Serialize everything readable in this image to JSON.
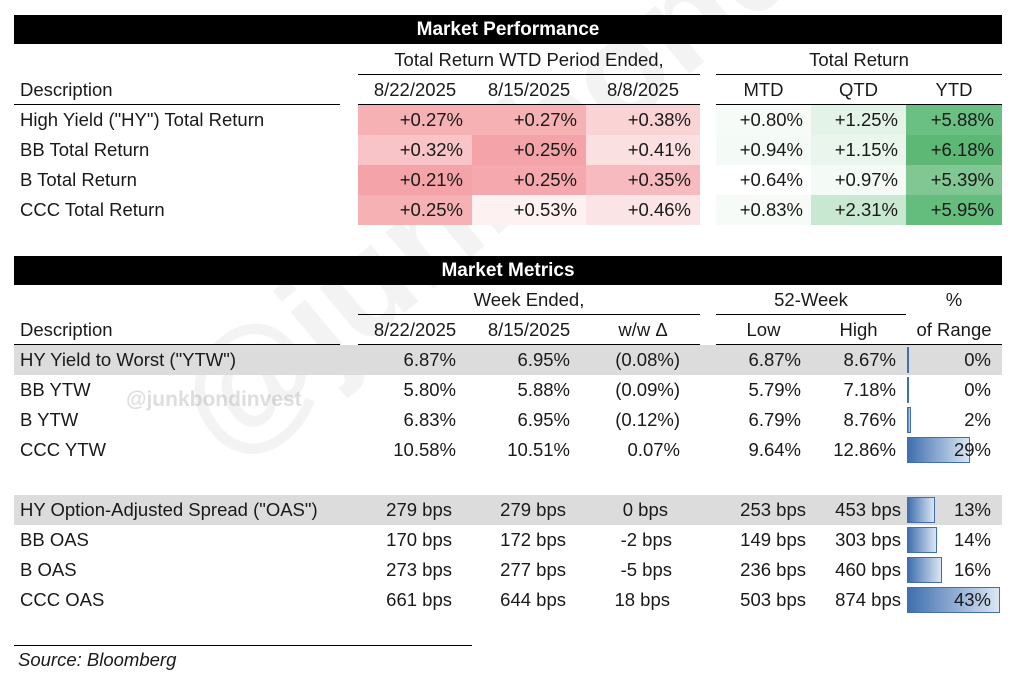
{
  "colors": {
    "red_strong": "#f4a3a8",
    "red_mid": "#f7bfc2",
    "red_light": "#fadadc",
    "red_faint": "#fdf0f0",
    "green_strong": "#5cb874",
    "green_mid": "#73c288",
    "green_light": "#c9e8d1",
    "green_pale": "#e9f5ec",
    "green_faint": "#f4faf5",
    "bar_blue": "#3f6faf",
    "gray_row": "#dcdcdc"
  },
  "performance": {
    "title": "Market Performance",
    "group_wtd": "Total Return WTD Period Ended,",
    "group_total": "Total Return",
    "description_header": "Description",
    "columns": [
      "8/22/2025",
      "8/15/2025",
      "8/8/2025",
      "MTD",
      "QTD",
      "YTD"
    ],
    "rows": [
      {
        "label": "High Yield (\"HY\") Total Return",
        "values": [
          "+0.27%",
          "+0.27%",
          "+0.38%",
          "+0.80%",
          "+1.25%",
          "+5.88%"
        ]
      },
      {
        "label": "BB Total Return",
        "values": [
          "+0.32%",
          "+0.25%",
          "+0.41%",
          "+0.94%",
          "+1.15%",
          "+6.18%"
        ]
      },
      {
        "label": "B Total Return",
        "values": [
          "+0.21%",
          "+0.25%",
          "+0.35%",
          "+0.64%",
          "+0.97%",
          "+5.39%"
        ]
      },
      {
        "label": "CCC Total Return",
        "values": [
          "+0.25%",
          "+0.53%",
          "+0.46%",
          "+0.83%",
          "+2.31%",
          "+5.95%"
        ]
      }
    ]
  },
  "metrics": {
    "title": "Market Metrics",
    "group_week": "Week Ended,",
    "group_52": "52-Week",
    "pct_header_top": "%",
    "pct_header_bottom": "of Range",
    "description_header": "Description",
    "columns": [
      "8/22/2025",
      "8/15/2025",
      "w/w Δ",
      "Low",
      "High"
    ],
    "ytw_rows": [
      {
        "label": "HY Yield to Worst (\"YTW\")",
        "values": [
          "6.87%",
          "6.95%",
          "(0.08%)",
          "6.87%",
          "8.67%"
        ],
        "pct_text": "0%",
        "pct": 0
      },
      {
        "label": "BB YTW",
        "values": [
          "5.80%",
          "5.88%",
          "(0.09%)",
          "5.79%",
          "7.18%"
        ],
        "pct_text": "0%",
        "pct": 0
      },
      {
        "label": "B YTW",
        "values": [
          "6.83%",
          "6.95%",
          "(0.12%)",
          "6.79%",
          "8.76%"
        ],
        "pct_text": "2%",
        "pct": 2
      },
      {
        "label": "CCC YTW",
        "values": [
          "10.58%",
          "10.51%",
          "0.07%",
          "9.64%",
          "12.86%"
        ],
        "pct_text": "29%",
        "pct": 29
      }
    ],
    "oas_rows": [
      {
        "label": "HY Option-Adjusted Spread (\"OAS\")",
        "values": [
          "279 bps",
          "279 bps",
          "0 bps",
          "253 bps",
          "453 bps"
        ],
        "pct_text": "13%",
        "pct": 13
      },
      {
        "label": "BB OAS",
        "values": [
          "170 bps",
          "172 bps",
          "-2 bps",
          "149 bps",
          "303 bps"
        ],
        "pct_text": "14%",
        "pct": 14
      },
      {
        "label": "B OAS",
        "values": [
          "273 bps",
          "277 bps",
          "-5 bps",
          "236 bps",
          "460 bps"
        ],
        "pct_text": "16%",
        "pct": 16
      },
      {
        "label": "CCC OAS",
        "values": [
          "661 bps",
          "644 bps",
          "18 bps",
          "503 bps",
          "874 bps"
        ],
        "pct_text": "43%",
        "pct": 43
      }
    ]
  },
  "watermark": {
    "handle": "@junkbondinvest"
  },
  "source": "Source: Bloomberg"
}
